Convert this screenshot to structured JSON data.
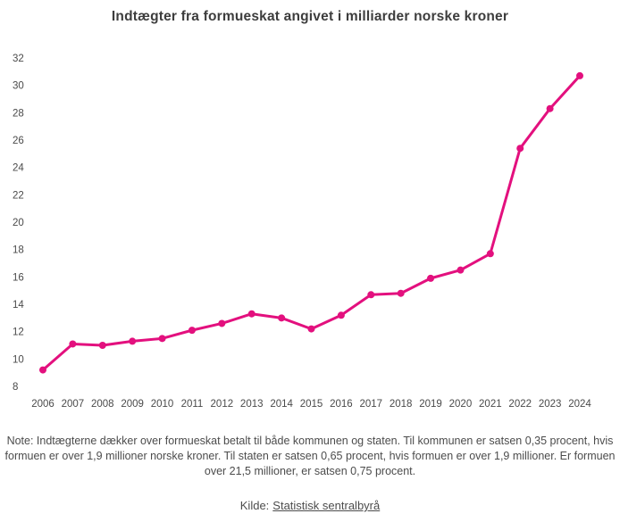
{
  "title": "Indtægter fra formueskat angivet i milliarder norske kroner",
  "chart_data": {
    "type": "line",
    "title": "Indtægter fra formueskat angivet i milliarder norske kroner",
    "x": [
      "2006",
      "2007",
      "2008",
      "2009",
      "2010",
      "2011",
      "2012",
      "2013",
      "2014",
      "2015",
      "2016",
      "2017",
      "2018",
      "2019",
      "2020",
      "2021",
      "2022",
      "2023",
      "2024"
    ],
    "values": [
      9.2,
      11.1,
      11.0,
      11.3,
      11.5,
      12.1,
      12.6,
      13.3,
      13.0,
      12.2,
      13.2,
      14.7,
      14.8,
      15.9,
      16.5,
      17.7,
      25.4,
      28.3,
      30.7
    ],
    "series_name": "Indtægter fra formueskat (mia. NOK)",
    "xlabel": "",
    "ylabel": "",
    "ylim": [
      8,
      32
    ],
    "ytick_step": 2,
    "grid": false,
    "legend": "none",
    "marker": "circle",
    "line_color": "#e3107e",
    "tick_color": "#4a4a4a"
  },
  "note": "Note: Indtægterne dækker over formueskat betalt til både kommunen og staten. Til kommunen er satsen 0,35 procent, hvis formuen er over 1,9 millioner norske kroner. Til staten er satsen 0,65 procent, hvis formuen er over 1,9 millioner. Er formuen over 21,5 millioner, er satsen 0,75 procent.",
  "source": {
    "prefix": "Kilde:",
    "link_text": "Statistisk sentralbyrå"
  }
}
